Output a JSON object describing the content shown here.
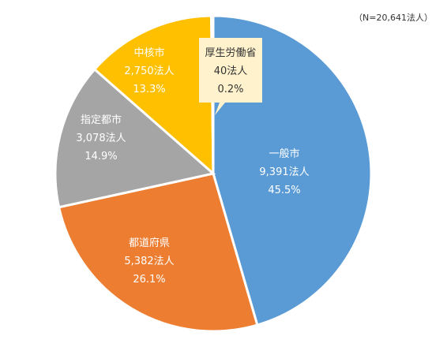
{
  "chart_data": {
    "type": "pie",
    "note": "（N=20,641法人）",
    "slices": [
      {
        "name": "一般市",
        "count_label": "9,391法人",
        "percent_label": "45.5%",
        "value": 9391,
        "color": "#5b9bd5"
      },
      {
        "name": "都道府県",
        "count_label": "5,382法人",
        "percent_label": "26.1%",
        "value": 5382,
        "color": "#ed7d31"
      },
      {
        "name": "指定都市",
        "count_label": "3,078法人",
        "percent_label": "14.9%",
        "value": 3078,
        "color": "#a5a5a5"
      },
      {
        "name": "中核市",
        "count_label": "2,750法人",
        "percent_label": "13.3%",
        "value": 2750,
        "color": "#ffc000"
      },
      {
        "name": "厚生労働省",
        "count_label": "40法人",
        "percent_label": "0.2%",
        "value": 40,
        "color": "#4472c4"
      }
    ],
    "callout_bg": "#fff2cc",
    "grid": false,
    "legend": "none"
  }
}
